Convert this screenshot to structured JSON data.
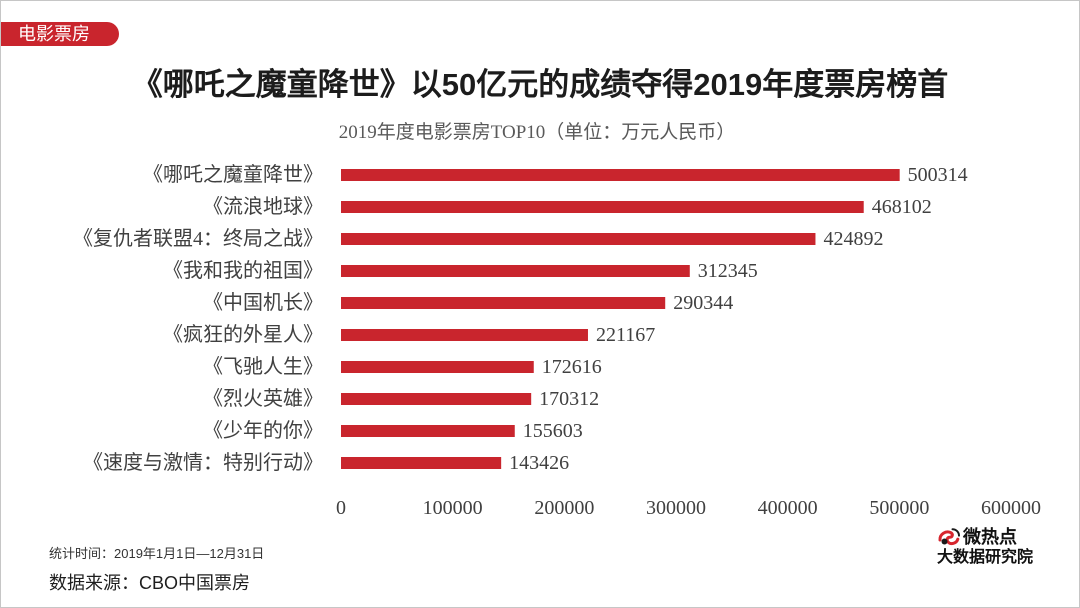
{
  "colors": {
    "accent": "#c9252d",
    "text": "#404040"
  },
  "tab": {
    "label": "电影票房"
  },
  "headline": "《哪吒之魔童降世》以50亿元的成绩夺得2019年度票房榜首",
  "chart_data": {
    "type": "bar",
    "orientation": "horizontal",
    "title": "2019年度电影票房TOP10（单位：万元人民币）",
    "categories": [
      "《哪吒之魔童降世》",
      "《流浪地球》",
      "《复仇者联盟4：终局之战》",
      "《我和我的祖国》",
      "《中国机长》",
      "《疯狂的外星人》",
      "《飞驰人生》",
      "《烈火英雄》",
      "《少年的你》",
      "《速度与激情：特别行动》"
    ],
    "values": [
      500314,
      468102,
      424892,
      312345,
      290344,
      221167,
      172616,
      170312,
      155603,
      143426
    ],
    "xlim": [
      0,
      600000
    ],
    "xticks": [
      0,
      100000,
      200000,
      300000,
      400000,
      500000,
      600000
    ],
    "grid": false,
    "data_labels": true,
    "bar_color": "#c9252d"
  },
  "footer": {
    "period": "统计时间：2019年1月1日—12月31日",
    "source": "数据来源：CBO中国票房"
  },
  "logo": {
    "icon": "weiredian-swirl-icon",
    "name": "微热点",
    "subtitle": "大数据研究院"
  }
}
